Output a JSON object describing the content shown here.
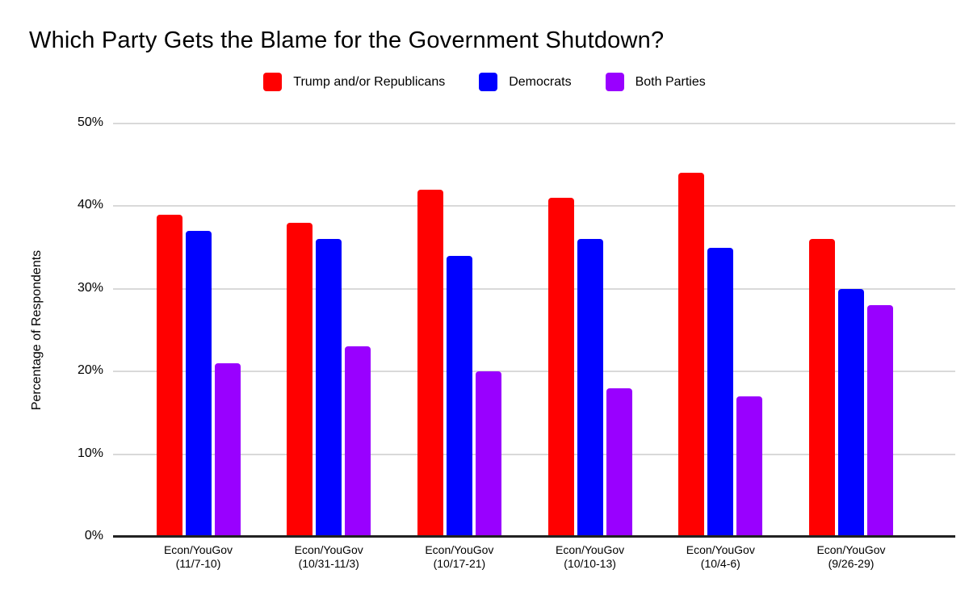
{
  "chart_data": {
    "type": "bar",
    "title": "Which Party Gets the Blame for the Government Shutdown?",
    "ylabel": "Percentage of Respondents",
    "xlabel": "",
    "ylim": [
      0,
      50
    ],
    "ytick_labels": [
      "0%",
      "10%",
      "20%",
      "30%",
      "40%",
      "50%"
    ],
    "grid": true,
    "legend_position": "top",
    "categories": [
      {
        "line1": "Econ/YouGov",
        "line2": "(11/7-10)"
      },
      {
        "line1": "Econ/YouGov",
        "line2": "(10/31-11/3)"
      },
      {
        "line1": "Econ/YouGov",
        "line2": "(10/17-21)"
      },
      {
        "line1": "Econ/YouGov",
        "line2": "(10/10-13)"
      },
      {
        "line1": "Econ/YouGov",
        "line2": "(10/4-6)"
      },
      {
        "line1": "Econ/YouGov",
        "line2": "(9/26-29)"
      }
    ],
    "series": [
      {
        "name": "Trump and/or Republicans",
        "color": "#ff0000",
        "values": [
          39,
          38,
          42,
          41,
          44,
          36
        ]
      },
      {
        "name": "Democrats",
        "color": "#0000ff",
        "values": [
          37,
          36,
          34,
          36,
          35,
          30
        ]
      },
      {
        "name": "Both Parties",
        "color": "#9900ff",
        "values": [
          21,
          23,
          20,
          18,
          17,
          28
        ]
      }
    ],
    "colors": {
      "gridline": "#d9d9d9",
      "axis": "#212121",
      "text": "#000000",
      "background": "#ffffff"
    }
  }
}
